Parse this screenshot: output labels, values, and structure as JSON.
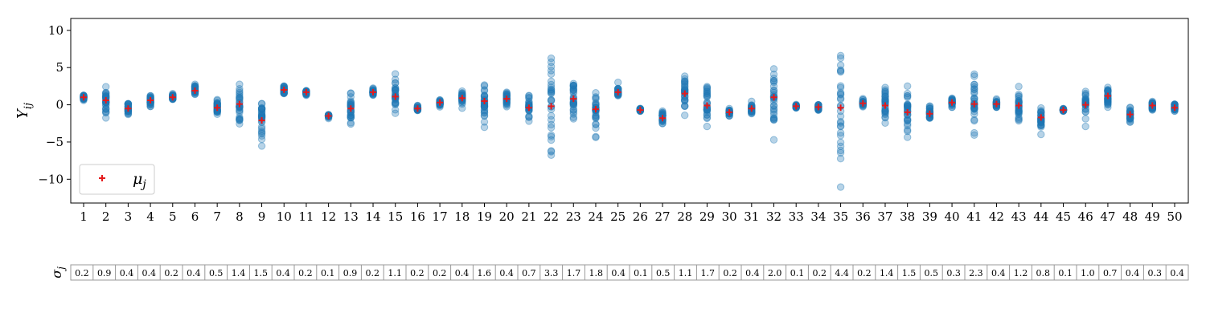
{
  "chart_data": {
    "type": "scatter",
    "ylabel": "Y_ij",
    "ylim": [
      -13.2,
      11.6
    ],
    "yticks": [
      10,
      5,
      0,
      -5,
      -10
    ],
    "grid": false,
    "legend": {
      "position": "lower-left",
      "entries": [
        "μ_j"
      ]
    },
    "categories": [
      1,
      2,
      3,
      4,
      5,
      6,
      7,
      8,
      9,
      10,
      11,
      12,
      13,
      14,
      15,
      16,
      17,
      18,
      19,
      20,
      21,
      22,
      23,
      24,
      25,
      26,
      27,
      28,
      29,
      30,
      31,
      32,
      33,
      34,
      35,
      36,
      37,
      38,
      39,
      40,
      41,
      42,
      43,
      44,
      45,
      46,
      47,
      48,
      49,
      50
    ],
    "series": [
      {
        "name": "μ_j",
        "marker": "plus",
        "color": "#e41a1c",
        "values": [
          1.0,
          0.6,
          -0.5,
          0.6,
          1.0,
          1.9,
          -0.4,
          0.1,
          -2.1,
          2.0,
          1.7,
          -1.5,
          -0.5,
          1.7,
          1.1,
          -0.5,
          0.3,
          0.9,
          0.5,
          0.8,
          -0.4,
          -0.2,
          0.8,
          -0.6,
          1.7,
          -0.7,
          -1.8,
          1.5,
          -0.1,
          -1.0,
          -0.5,
          1.0,
          -0.2,
          -0.3,
          -0.4,
          0.2,
          -0.1,
          -1.0,
          -1.2,
          0.3,
          0.1,
          0.1,
          -0.1,
          -1.7,
          -0.7,
          0.0,
          1.2,
          -1.3,
          -0.1,
          -0.4
        ]
      }
    ],
    "sample_color": "#1f77b4",
    "sigma_label": "σ_j",
    "sigma": [
      0.2,
      0.9,
      0.4,
      0.4,
      0.2,
      0.4,
      0.5,
      1.4,
      1.5,
      0.4,
      0.2,
      0.1,
      0.9,
      0.2,
      1.1,
      0.2,
      0.2,
      0.4,
      1.6,
      0.4,
      0.7,
      3.3,
      1.7,
      1.8,
      0.4,
      0.1,
      0.5,
      1.1,
      1.7,
      0.2,
      0.4,
      2.0,
      0.1,
      0.2,
      4.4,
      0.2,
      1.4,
      1.5,
      0.5,
      0.3,
      2.3,
      0.4,
      1.2,
      0.8,
      0.1,
      1.0,
      0.7,
      0.4,
      0.3,
      0.4
    ]
  }
}
